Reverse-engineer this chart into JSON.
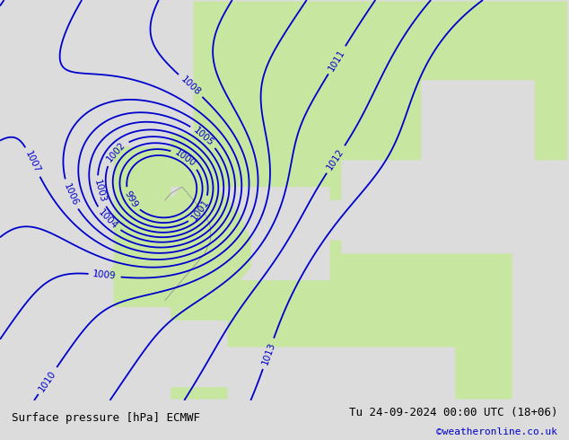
{
  "title_left": "Surface pressure [hPa] ECMWF",
  "title_right": "Tu 24-09-2024 00:00 UTC (18+06)",
  "credit": "©weatheronline.co.uk",
  "background_color": "#e8e8e8",
  "land_color": "#c8e6a0",
  "sea_color": "#dcdcdc",
  "contour_color": "#0000cc",
  "contour_linewidth": 1.3,
  "label_fontsize": 7.5,
  "bottom_bar_color": "#dcdcdc",
  "bottom_text_color": "#000000",
  "credit_color": "#0000cc",
  "pressure_min": 999,
  "pressure_max": 1013,
  "pressure_step": 1,
  "figsize": [
    6.34,
    4.9
  ],
  "dpi": 100
}
